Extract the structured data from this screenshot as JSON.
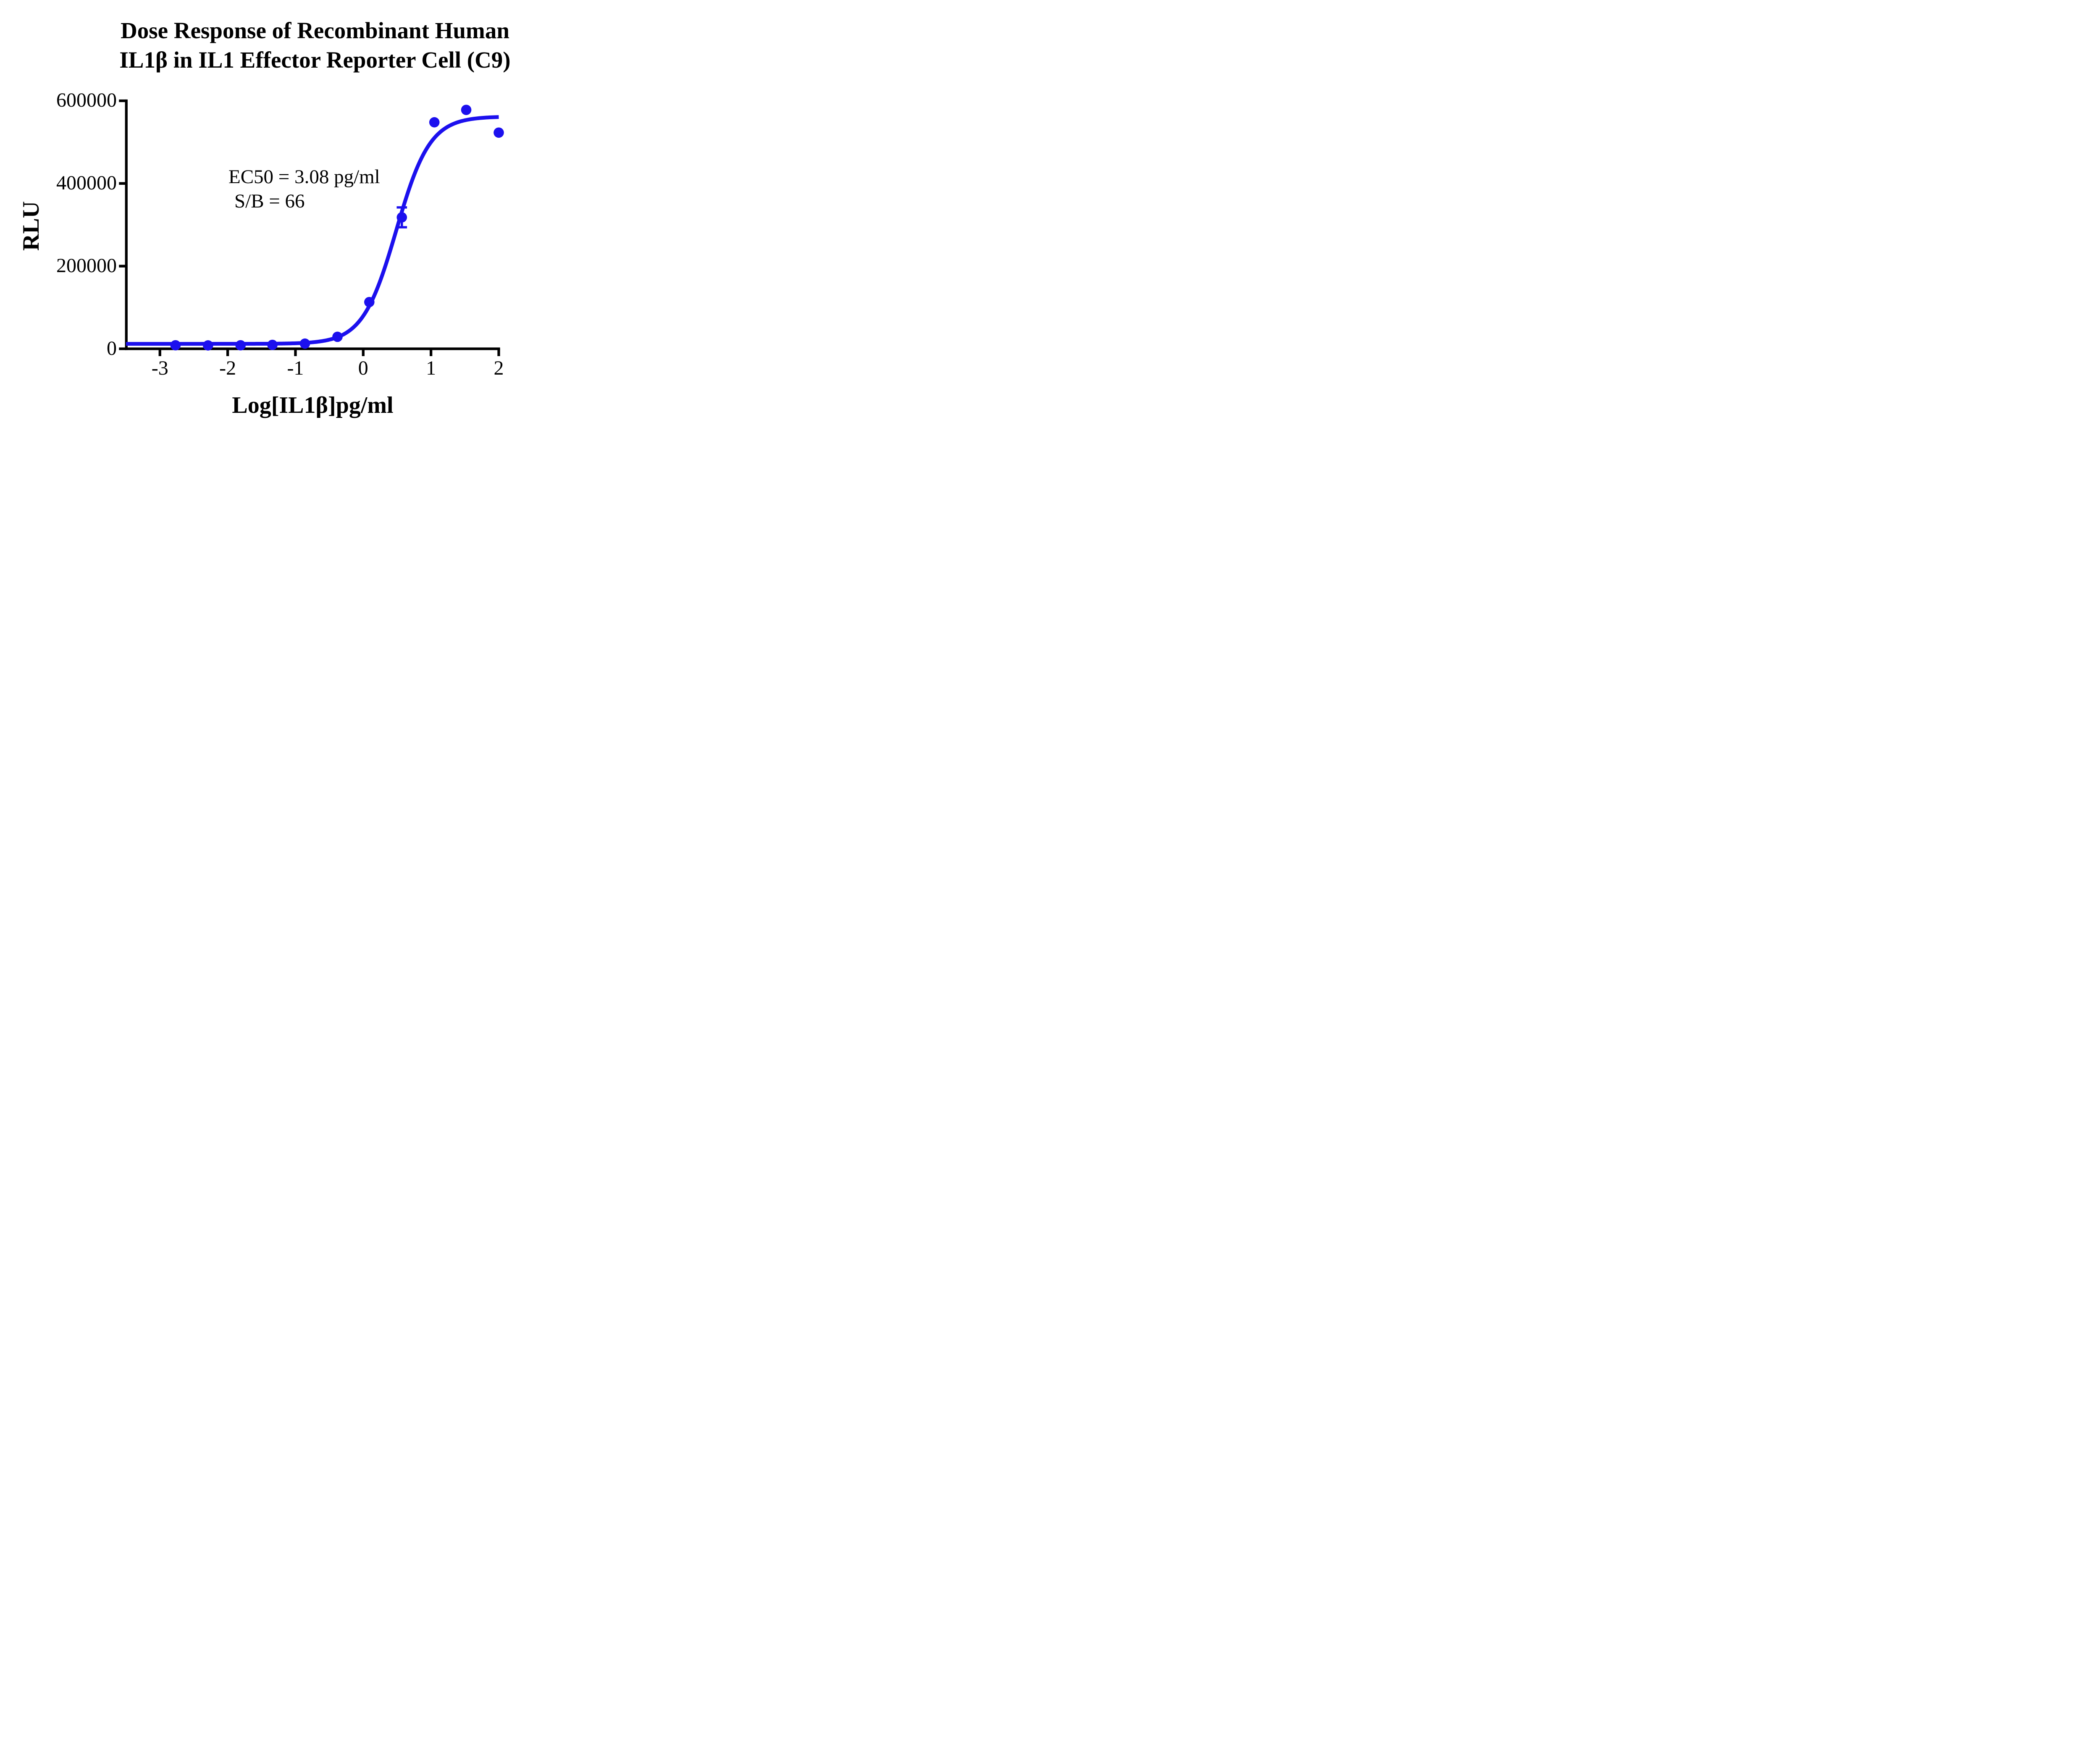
{
  "chart_data": {
    "type": "scatter",
    "title_line1": "Dose Response of Recombinant Human",
    "title_line2": "IL1β in IL1 Effector Reporter Cell (C9)",
    "ylabel": "RLU",
    "xlabel": "Log[IL1β]pg/ml",
    "annotations": {
      "ec50_text": "EC50 = 3.08 pg/ml",
      "ec50_value_pg_ml": 3.08,
      "sb_text": "S/B = 66",
      "sb_value": 66
    },
    "xlim": [
      -3.5,
      2.0
    ],
    "ylim": [
      0,
      600000
    ],
    "grid": false,
    "legend": "none",
    "axis_color": "#000000",
    "xticks": [
      {
        "value": -3,
        "label": "-3"
      },
      {
        "value": -2,
        "label": "-2"
      },
      {
        "value": -1,
        "label": "-1"
      },
      {
        "value": 0,
        "label": "0"
      },
      {
        "value": 1,
        "label": "1"
      },
      {
        "value": 2,
        "label": "2"
      }
    ],
    "yticks": [
      {
        "value": 0,
        "label": "0"
      },
      {
        "value": 200000,
        "label": "200000"
      },
      {
        "value": 400000,
        "label": "400000"
      },
      {
        "value": 600000,
        "label": "600000"
      }
    ],
    "series": [
      {
        "name": "Recombinant Human IL1β",
        "color": "#1c10ee",
        "marker": "circle",
        "points": [
          {
            "x": -2.77,
            "y": 8500
          },
          {
            "x": -2.29,
            "y": 8200
          },
          {
            "x": -1.81,
            "y": 8500
          },
          {
            "x": -1.34,
            "y": 9500
          },
          {
            "x": -0.86,
            "y": 12500
          },
          {
            "x": -0.38,
            "y": 29000
          },
          {
            "x": 0.09,
            "y": 113000
          },
          {
            "x": 0.57,
            "y": 318000,
            "error": 24000
          },
          {
            "x": 1.05,
            "y": 548000
          },
          {
            "x": 1.52,
            "y": 578000
          },
          {
            "x": 2.0,
            "y": 523000
          }
        ],
        "fit": {
          "model": "4PL",
          "bottom": 12000,
          "top": 562000,
          "logEC50": 0.4886,
          "hillslope": 1.75,
          "x_start": -3.5,
          "x_end": 2.0
        }
      }
    ]
  }
}
